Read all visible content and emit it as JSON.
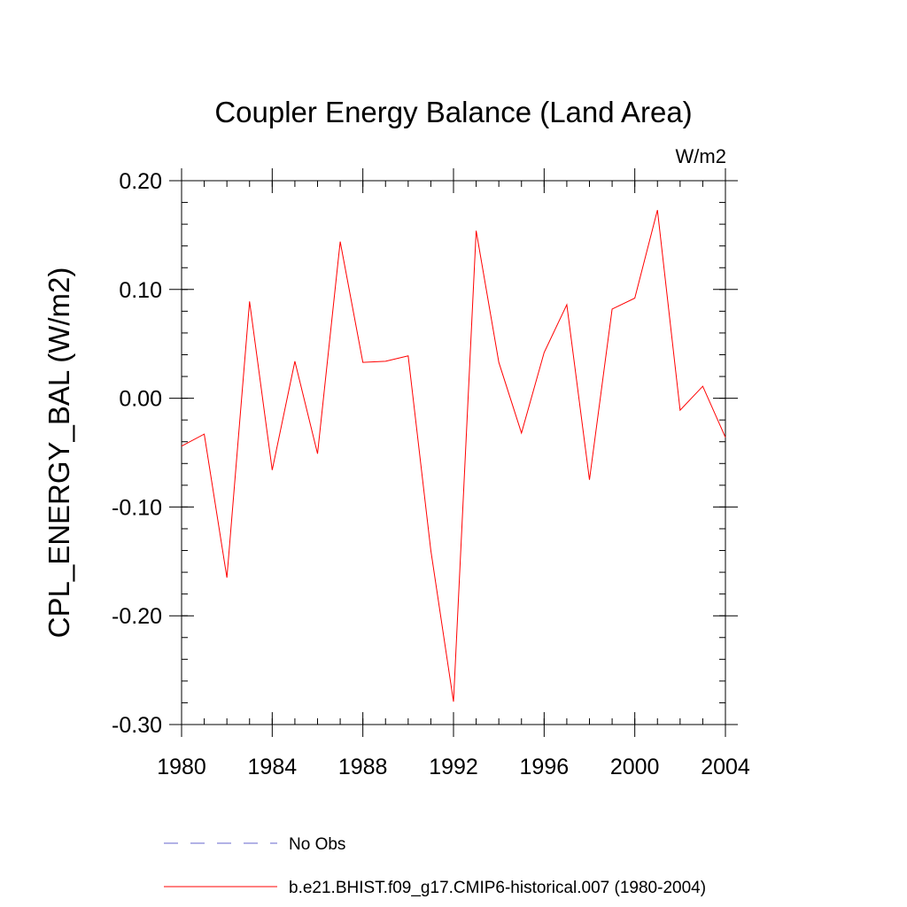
{
  "chart_data": {
    "type": "line",
    "title": "Coupler Energy Balance (Land Area)",
    "units_label": "W/m2",
    "ylabel": "CPL_ENERGY_BAL  (W/m2)",
    "xlabel": "",
    "xlim": [
      1980,
      2004
    ],
    "ylim": [
      -0.3,
      0.2
    ],
    "x_ticks": [
      1980,
      1984,
      1988,
      1992,
      1996,
      2000,
      2004
    ],
    "x_tick_labels": [
      "1980",
      "1984",
      "1988",
      "1992",
      "1996",
      "2000",
      "2004"
    ],
    "y_ticks": [
      -0.3,
      -0.2,
      -0.1,
      0.0,
      0.1,
      0.2
    ],
    "y_tick_labels": [
      "-0.30",
      "-0.20",
      "-0.10",
      "0.00",
      "0.10",
      "0.20"
    ],
    "grid": false,
    "legend_position": "bottom",
    "series": [
      {
        "name": "b.e21.BHIST.f09_g17.CMIP6-historical.007 (1980-2004)",
        "color": "#ff0000",
        "dash": "solid",
        "x": [
          1980,
          1981,
          1982,
          1983,
          1984,
          1985,
          1986,
          1987,
          1988,
          1989,
          1990,
          1991,
          1992,
          1993,
          1994,
          1995,
          1996,
          1997,
          1998,
          1999,
          2000,
          2001,
          2002,
          2003,
          2004
        ],
        "values": [
          -0.044,
          -0.033,
          -0.165,
          0.089,
          -0.066,
          0.034,
          -0.051,
          0.144,
          0.033,
          0.034,
          0.039,
          -0.14,
          -0.279,
          0.154,
          0.033,
          -0.032,
          0.042,
          0.086,
          -0.075,
          0.082,
          0.092,
          0.173,
          -0.011,
          0.011,
          -0.036
        ]
      }
    ],
    "legend": [
      {
        "label": "No Obs",
        "color": "#6666cc",
        "dash": "dashed"
      },
      {
        "label": "b.e21.BHIST.f09_g17.CMIP6-historical.007 (1980-2004)",
        "color": "#ff0000",
        "dash": "solid"
      }
    ]
  }
}
